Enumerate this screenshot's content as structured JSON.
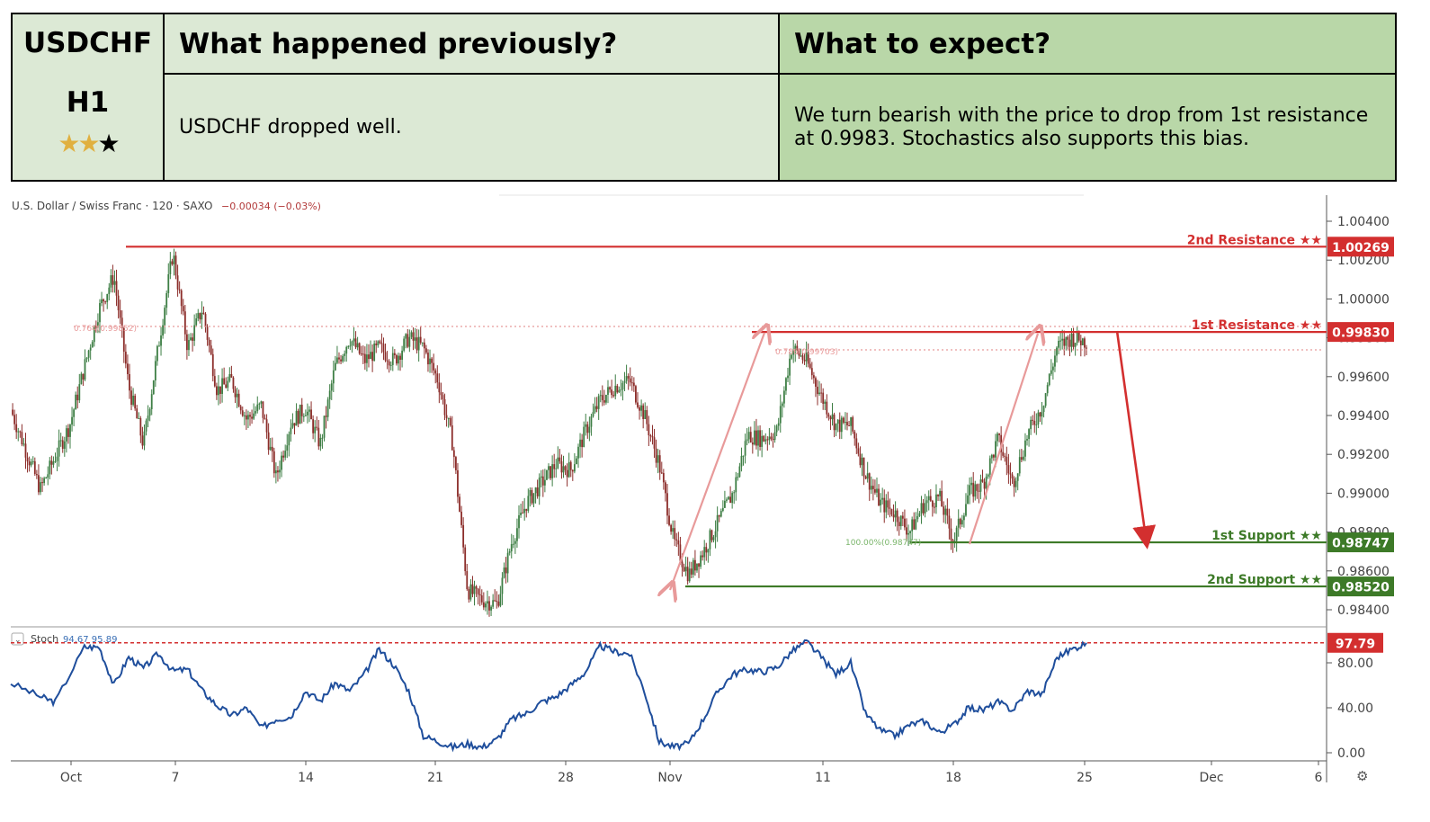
{
  "header": {
    "pair": "USDCHF",
    "timeframe": "H1",
    "rating": {
      "filled": 2,
      "total": 3
    },
    "previous_heading": "What happened previously?",
    "expect_heading": "What to expect?",
    "previous_text": "USDCHF dropped well.",
    "expect_text": "We turn bearish with the price to drop from 1st resistance at 0.9983. Stochastics also supports this bias."
  },
  "chart_info": {
    "symbol_line": "U.S. Dollar / Swiss Franc · 120 · SAXO",
    "change": "−0.00034 (−0.03%)"
  },
  "colors": {
    "resistance": "#d32f2f",
    "support": "#3d7a28",
    "candle_up": "#3d7e44",
    "candle_down": "#8c2d2a",
    "stoch_line": "#1f4e9c",
    "fib": "#e89a9a",
    "header_light": "#dce9d5",
    "header_dark": "#b9d7a8"
  },
  "chart_data": {
    "type": "candlestick",
    "price_axis": {
      "ticks": [
        "1.00400",
        "1.00200",
        "1.00000",
        "0.99800",
        "0.99600",
        "0.99400",
        "0.99200",
        "0.99000",
        "0.98800",
        "0.98600",
        "0.98400"
      ],
      "ylim": [
        0.9833,
        1.0046
      ]
    },
    "x_axis": {
      "labels": [
        "Oct",
        "7",
        "14",
        "21",
        "28",
        "Nov",
        "11",
        "18",
        "25",
        "Dec",
        "6"
      ]
    },
    "levels": [
      {
        "name": "2nd Resistance ★★",
        "value": 1.00269,
        "label": "1.00269",
        "kind": "resistance"
      },
      {
        "name": "1st Resistance ★★",
        "value": 0.9983,
        "label": "0.99830",
        "kind": "resistance"
      },
      {
        "name": "1st Support ★★",
        "value": 0.98747,
        "label": "0.98747",
        "kind": "support"
      },
      {
        "name": "2nd Support ★★",
        "value": 0.9852,
        "label": "0.98520",
        "kind": "support"
      }
    ],
    "fib_labels": [
      "0.764(0.99852)",
      "0.786(0.99703)",
      "100.00%(0.98747)"
    ],
    "price_path": [
      [
        0,
        0.9943
      ],
      [
        2,
        0.9902
      ],
      [
        4,
        0.9935
      ],
      [
        6,
        0.9995
      ],
      [
        7,
        1.0012
      ],
      [
        8,
        0.9955
      ],
      [
        9,
        0.9925
      ],
      [
        10,
        0.9975
      ],
      [
        11,
        1.0024
      ],
      [
        12,
        0.9975
      ],
      [
        13,
        0.9995
      ],
      [
        14,
        0.9953
      ],
      [
        15,
        0.9958
      ],
      [
        16,
        0.9938
      ],
      [
        17,
        0.9945
      ],
      [
        18,
        0.9908
      ],
      [
        19,
        0.9936
      ],
      [
        20,
        0.9944
      ],
      [
        21,
        0.9925
      ],
      [
        22,
        0.9965
      ],
      [
        23,
        0.998
      ],
      [
        24,
        0.9968
      ],
      [
        25,
        0.9975
      ],
      [
        26,
        0.9968
      ],
      [
        27,
        0.998
      ],
      [
        28,
        0.9975
      ],
      [
        29,
        0.9958
      ],
      [
        30,
        0.9925
      ],
      [
        31,
        0.985
      ],
      [
        32,
        0.9845
      ],
      [
        33,
        0.9843
      ],
      [
        34,
        0.9875
      ],
      [
        35,
        0.9895
      ],
      [
        36,
        0.9905
      ],
      [
        37,
        0.9915
      ],
      [
        38,
        0.9912
      ],
      [
        39,
        0.9932
      ],
      [
        40,
        0.9948
      ],
      [
        41,
        0.9955
      ],
      [
        42,
        0.9958
      ],
      [
        43,
        0.994
      ],
      [
        44,
        0.9915
      ],
      [
        45,
        0.9875
      ],
      [
        46,
        0.9858
      ],
      [
        47,
        0.987
      ],
      [
        48,
        0.9885
      ],
      [
        49,
        0.99
      ],
      [
        50,
        0.993
      ],
      [
        51,
        0.9928
      ],
      [
        52,
        0.9932
      ],
      [
        53,
        0.9975
      ],
      [
        54,
        0.9968
      ],
      [
        55,
        0.995
      ],
      [
        56,
        0.9935
      ],
      [
        57,
        0.9935
      ],
      [
        58,
        0.991
      ],
      [
        59,
        0.9895
      ],
      [
        60,
        0.989
      ],
      [
        61,
        0.988
      ],
      [
        62,
        0.9895
      ],
      [
        63,
        0.9898
      ],
      [
        64,
        0.9875
      ],
      [
        65,
        0.99
      ],
      [
        66,
        0.9905
      ],
      [
        67,
        0.9928
      ],
      [
        68,
        0.9905
      ],
      [
        69,
        0.993
      ],
      [
        70,
        0.9945
      ],
      [
        71,
        0.9975
      ],
      [
        72,
        0.998
      ],
      [
        73,
        0.9978
      ]
    ],
    "stochastic": {
      "label": "Stoch",
      "values_label": "94.67  95.89",
      "last": "97.79",
      "level": 97.79,
      "ticks": [
        "80.00",
        "40.00",
        "0.00"
      ],
      "ylim": [
        -3,
        108
      ],
      "k": [
        [
          0,
          62
        ],
        [
          2,
          50
        ],
        [
          3,
          45
        ],
        [
          5,
          94
        ],
        [
          6,
          94
        ],
        [
          7,
          60
        ],
        [
          8,
          85
        ],
        [
          9,
          75
        ],
        [
          10,
          88
        ],
        [
          11,
          73
        ],
        [
          12,
          74
        ],
        [
          13,
          55
        ],
        [
          14,
          42
        ],
        [
          15,
          33
        ],
        [
          16,
          40
        ],
        [
          17,
          22
        ],
        [
          18,
          30
        ],
        [
          19,
          32
        ],
        [
          20,
          55
        ],
        [
          21,
          46
        ],
        [
          22,
          62
        ],
        [
          23,
          55
        ],
        [
          24,
          70
        ],
        [
          25,
          92
        ],
        [
          26,
          78
        ],
        [
          27,
          55
        ],
        [
          28,
          15
        ],
        [
          29,
          10
        ],
        [
          30,
          5
        ],
        [
          31,
          8
        ],
        [
          32,
          5
        ],
        [
          33,
          12
        ],
        [
          34,
          30
        ],
        [
          35,
          35
        ],
        [
          36,
          45
        ],
        [
          37,
          50
        ],
        [
          38,
          60
        ],
        [
          39,
          72
        ],
        [
          40,
          95
        ],
        [
          41,
          90
        ],
        [
          42,
          88
        ],
        [
          43,
          55
        ],
        [
          44,
          10
        ],
        [
          45,
          5
        ],
        [
          46,
          8
        ],
        [
          47,
          30
        ],
        [
          48,
          55
        ],
        [
          49,
          70
        ],
        [
          50,
          74
        ],
        [
          51,
          72
        ],
        [
          52,
          76
        ],
        [
          53,
          90
        ],
        [
          54,
          99
        ],
        [
          55,
          85
        ],
        [
          56,
          70
        ],
        [
          57,
          80
        ],
        [
          58,
          35
        ],
        [
          59,
          20
        ],
        [
          60,
          15
        ],
        [
          61,
          25
        ],
        [
          62,
          28
        ],
        [
          63,
          18
        ],
        [
          64,
          25
        ],
        [
          65,
          40
        ],
        [
          66,
          38
        ],
        [
          67,
          45
        ],
        [
          68,
          38
        ],
        [
          69,
          55
        ],
        [
          70,
          52
        ],
        [
          71,
          85
        ],
        [
          72,
          92
        ],
        [
          73,
          97.8
        ]
      ]
    }
  }
}
